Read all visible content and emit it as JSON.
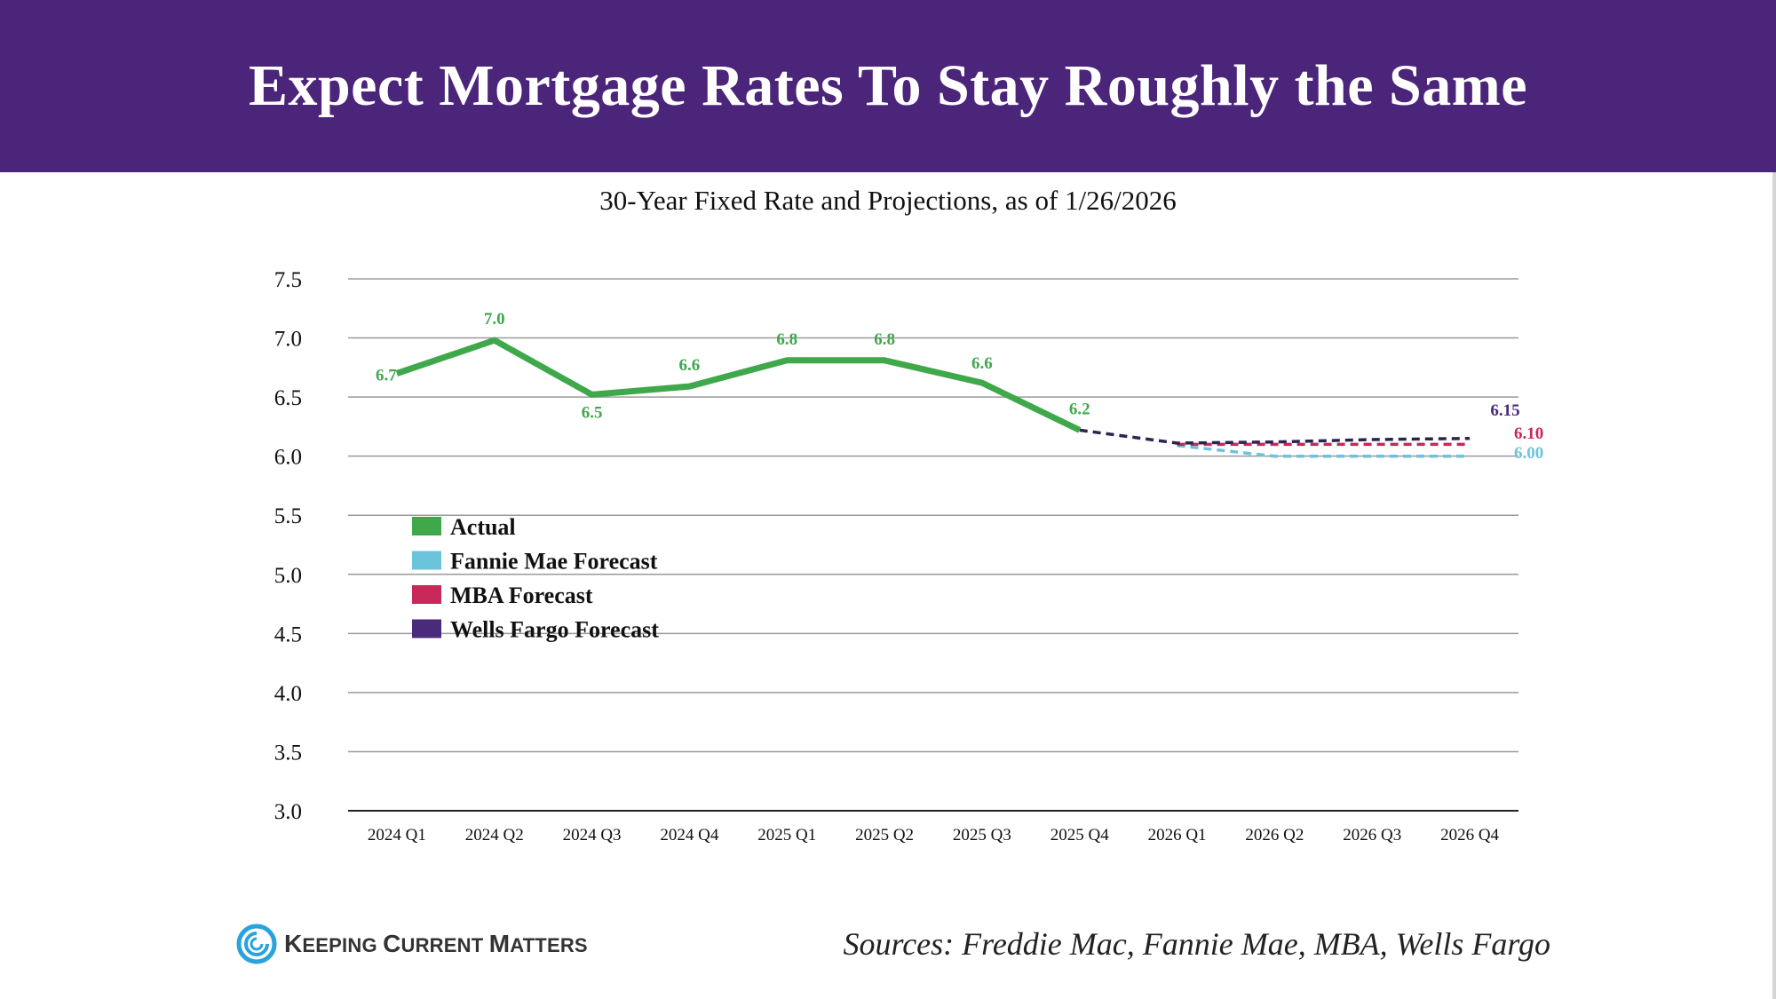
{
  "header": {
    "title": "Expect Mortgage Rates To Stay Roughly the Same"
  },
  "footer": {
    "logo_text": "Keeping Current Matters",
    "sources": "Sources: Freddie Mac, Fannie Mae, MBA, Wells Fargo"
  },
  "colors": {
    "header_bg": "#4b2579",
    "actual": "#3fa84a",
    "fannie_mae": "#6cc4dc",
    "mba": "#c8285a",
    "wells_fargo": "#4a2a7a",
    "wells_fargo_line": "#2c2450",
    "logo": "#2aa3dc"
  },
  "chart_data": {
    "type": "line",
    "title": "30-Year Fixed Rate and Projections, as of 1/26/2026",
    "xlabel": "",
    "ylabel": "",
    "ylim": [
      3.0,
      7.5
    ],
    "yticks": [
      "7.5",
      "7.0",
      "6.5",
      "6.0",
      "5.5",
      "5.0",
      "4.5",
      "4.0",
      "3.5",
      "3.0"
    ],
    "ytick_values": [
      7.5,
      7.0,
      6.5,
      6.0,
      5.5,
      5.0,
      4.5,
      4.0,
      3.5,
      3.0
    ],
    "categories": [
      "2024 Q1",
      "2024 Q2",
      "2024 Q3",
      "2024 Q4",
      "2025 Q1",
      "2025 Q2",
      "2025 Q3",
      "2025 Q4",
      "2026 Q1",
      "2026 Q2",
      "2026 Q3",
      "2026 Q4"
    ],
    "grid": true,
    "legend_position": "left-middle",
    "series": [
      {
        "name": "Actual",
        "key": "actual",
        "style": "solid",
        "values": [
          6.7,
          6.98,
          6.52,
          6.59,
          6.81,
          6.81,
          6.62,
          6.22,
          null,
          null,
          null,
          null
        ],
        "labels": [
          "6.7",
          "7.0",
          "6.5",
          "6.6",
          "6.8",
          "6.8",
          "6.6",
          "6.2",
          null,
          null,
          null,
          null
        ]
      },
      {
        "name": "Fannie Mae Forecast",
        "key": "fannie_mae",
        "style": "dashed",
        "values": [
          null,
          null,
          null,
          null,
          null,
          null,
          null,
          null,
          6.09,
          6.0,
          6.0,
          6.0
        ],
        "end_label": "6.00"
      },
      {
        "name": "MBA Forecast",
        "key": "mba",
        "style": "dashed",
        "values": [
          null,
          null,
          null,
          null,
          null,
          null,
          null,
          null,
          6.1,
          6.1,
          6.1,
          6.1
        ],
        "end_label": "6.10"
      },
      {
        "name": "Wells Fargo Forecast",
        "key": "wells_fargo",
        "style": "dashed",
        "values": [
          null,
          null,
          null,
          null,
          null,
          null,
          null,
          6.22,
          6.11,
          6.12,
          6.14,
          6.15
        ],
        "end_label": "6.15"
      }
    ],
    "legend": [
      {
        "label": "Actual",
        "key": "actual"
      },
      {
        "label": "Fannie Mae Forecast",
        "key": "fannie_mae"
      },
      {
        "label": "MBA Forecast",
        "key": "mba"
      },
      {
        "label": "Wells Fargo Forecast",
        "key": "wells_fargo"
      }
    ]
  }
}
